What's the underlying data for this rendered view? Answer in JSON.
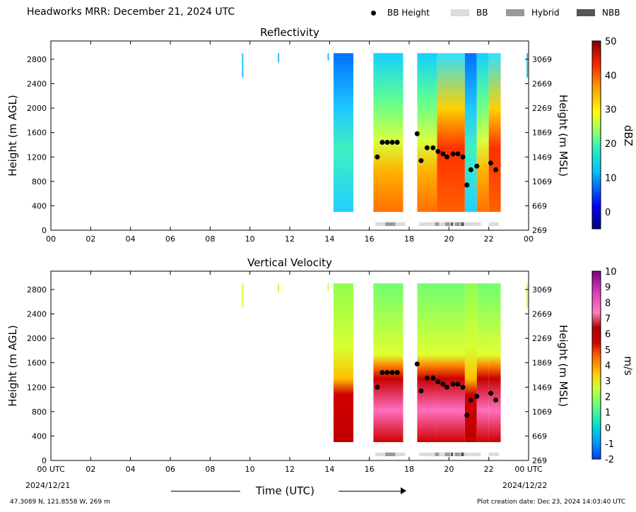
{
  "header": {
    "title": "Headworks MRR:  December 21, 2024 UTC",
    "legend": [
      {
        "label": "BB Height",
        "kind": "dot",
        "color": "#000000"
      },
      {
        "label": "BB",
        "kind": "swatch",
        "color": "#dcdcdc"
      },
      {
        "label": "Hybrid",
        "kind": "swatch",
        "color": "#999999"
      },
      {
        "label": "NBB",
        "kind": "swatch",
        "color": "#555555"
      }
    ]
  },
  "footer": {
    "location": "47.3089 N, 121.8558 W, 269 m",
    "creation_date": "Plot creation date: Dec 23, 2024 14:03:40 UTC",
    "xlabel": "Time (UTC)",
    "start_date": "2024/12/21",
    "end_date": "2024/12/22"
  },
  "chart_data": [
    {
      "type": "heatmap",
      "title": "Reflectivity",
      "ylabel": "Height (m AGL)",
      "ylabel_right": "Height (m MSL)",
      "colorbar_label": "dBZ",
      "colorbar_range": [
        -5,
        50
      ],
      "colorbar_ticks": [
        "0",
        "10",
        "20",
        "30",
        "40",
        "50"
      ],
      "xlim": [
        0,
        24
      ],
      "ylim": [
        0,
        3100
      ],
      "x_ticks": [
        "00",
        "02",
        "04",
        "06",
        "08",
        "10",
        "12",
        "14",
        "16",
        "18",
        "20",
        "22",
        "00"
      ],
      "y_ticks": [
        "0",
        "400",
        "800",
        "1200",
        "1600",
        "2000",
        "2400",
        "2800"
      ],
      "y_ticks_right": [
        "269",
        "669",
        "1069",
        "1469",
        "1869",
        "2269",
        "2669",
        "3069"
      ],
      "bb_height": [
        {
          "x": 16.4,
          "y": 1200
        },
        {
          "x": 16.65,
          "y": 1440
        },
        {
          "x": 16.9,
          "y": 1440
        },
        {
          "x": 17.15,
          "y": 1440
        },
        {
          "x": 17.4,
          "y": 1440
        },
        {
          "x": 18.4,
          "y": 1580
        },
        {
          "x": 18.6,
          "y": 1140
        },
        {
          "x": 18.9,
          "y": 1350
        },
        {
          "x": 19.2,
          "y": 1350
        },
        {
          "x": 19.45,
          "y": 1290
        },
        {
          "x": 19.7,
          "y": 1250
        },
        {
          "x": 19.9,
          "y": 1200
        },
        {
          "x": 20.2,
          "y": 1250
        },
        {
          "x": 20.45,
          "y": 1250
        },
        {
          "x": 20.7,
          "y": 1200
        },
        {
          "x": 20.9,
          "y": 740
        },
        {
          "x": 21.1,
          "y": 990
        },
        {
          "x": 21.4,
          "y": 1050
        },
        {
          "x": 22.1,
          "y": 1100
        },
        {
          "x": 22.35,
          "y": 990
        }
      ],
      "bb_type": [
        {
          "start": 16.3,
          "end": 17.8,
          "type": "BB"
        },
        {
          "start": 16.8,
          "end": 17.3,
          "type": "Hybrid"
        },
        {
          "start": 18.5,
          "end": 21.6,
          "type": "BB"
        },
        {
          "start": 19.3,
          "end": 19.5,
          "type": "Hybrid"
        },
        {
          "start": 19.8,
          "end": 20.05,
          "type": "Hybrid"
        },
        {
          "start": 20.3,
          "end": 20.55,
          "type": "Hybrid"
        },
        {
          "start": 20.1,
          "end": 20.2,
          "type": "NBB"
        },
        {
          "start": 20.6,
          "end": 20.75,
          "type": "NBB"
        },
        {
          "start": 22.0,
          "end": 22.5,
          "type": "BB"
        }
      ]
    },
    {
      "type": "heatmap",
      "title": "Vertical Velocity",
      "ylabel": "Height (m AGL)",
      "ylabel_right": "Height (m MSL)",
      "colorbar_label": "m/s",
      "colorbar_range": [
        -2,
        10
      ],
      "colorbar_ticks": [
        "-2",
        "-1",
        "0",
        "1",
        "2",
        "3",
        "4",
        "5",
        "6",
        "7",
        "8",
        "9",
        "10"
      ],
      "xlim": [
        0,
        24
      ],
      "ylim": [
        0,
        3100
      ],
      "x_ticks": [
        "00 UTC",
        "02",
        "04",
        "06",
        "08",
        "10",
        "12",
        "14",
        "16",
        "18",
        "20",
        "22",
        "00 UTC"
      ],
      "y_ticks": [
        "0",
        "400",
        "800",
        "1200",
        "1600",
        "2000",
        "2400",
        "2800"
      ],
      "y_ticks_right": [
        "269",
        "669",
        "1069",
        "1469",
        "1869",
        "2269",
        "2669",
        "3069"
      ],
      "bb_height": [
        {
          "x": 16.4,
          "y": 1200
        },
        {
          "x": 16.65,
          "y": 1440
        },
        {
          "x": 16.9,
          "y": 1440
        },
        {
          "x": 17.15,
          "y": 1440
        },
        {
          "x": 17.4,
          "y": 1440
        },
        {
          "x": 18.4,
          "y": 1580
        },
        {
          "x": 18.6,
          "y": 1140
        },
        {
          "x": 18.9,
          "y": 1350
        },
        {
          "x": 19.2,
          "y": 1350
        },
        {
          "x": 19.45,
          "y": 1290
        },
        {
          "x": 19.7,
          "y": 1250
        },
        {
          "x": 19.9,
          "y": 1200
        },
        {
          "x": 20.2,
          "y": 1250
        },
        {
          "x": 20.45,
          "y": 1250
        },
        {
          "x": 20.7,
          "y": 1200
        },
        {
          "x": 20.9,
          "y": 740
        },
        {
          "x": 21.1,
          "y": 990
        },
        {
          "x": 21.4,
          "y": 1050
        },
        {
          "x": 22.1,
          "y": 1100
        },
        {
          "x": 22.35,
          "y": 990
        }
      ],
      "bb_type": [
        {
          "start": 16.3,
          "end": 17.8,
          "type": "BB"
        },
        {
          "start": 16.8,
          "end": 17.3,
          "type": "Hybrid"
        },
        {
          "start": 18.5,
          "end": 21.6,
          "type": "BB"
        },
        {
          "start": 19.3,
          "end": 19.5,
          "type": "Hybrid"
        },
        {
          "start": 19.8,
          "end": 20.05,
          "type": "Hybrid"
        },
        {
          "start": 20.3,
          "end": 20.55,
          "type": "Hybrid"
        },
        {
          "start": 20.1,
          "end": 20.2,
          "type": "NBB"
        },
        {
          "start": 20.6,
          "end": 20.75,
          "type": "NBB"
        },
        {
          "start": 22.0,
          "end": 22.5,
          "type": "BB"
        }
      ]
    }
  ]
}
